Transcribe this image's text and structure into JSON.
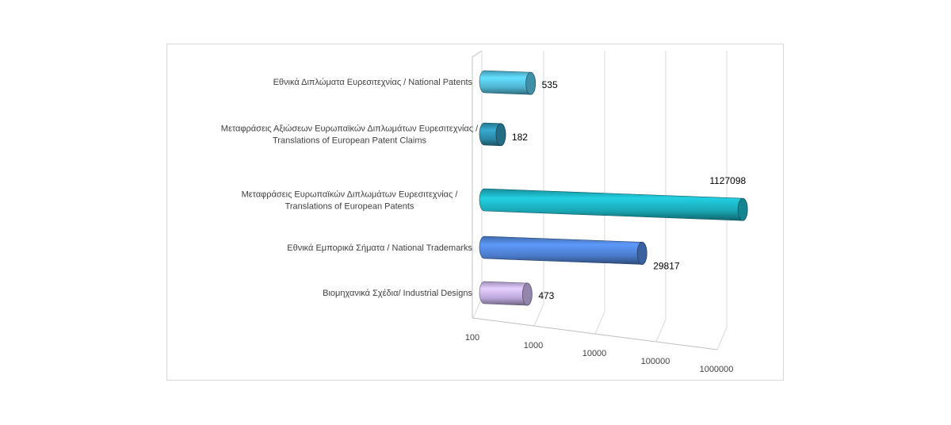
{
  "chart_data": {
    "type": "bar",
    "orientation": "horizontal",
    "style": "3d-cylinder",
    "x_scale": "log",
    "xlim": [
      100,
      1000000
    ],
    "x_ticks": [
      "100",
      "1000",
      "10000",
      "100000",
      "1000000"
    ],
    "gridlines": true,
    "legend": "none",
    "categories": [
      [
        "Εθνικά Διπλώματα Ευρεσιτεχνίας / National Patents"
      ],
      [
        "Μεταφράσεις Αξιώσεων Ευρωπαϊκών Διπλωμάτων Ευρεσιτεχνίας /",
        "Translations of European Patent Claims"
      ],
      [
        "Μεταφράσεις Ευρωπαϊκών Διπλωμάτων Ευρεσιτεχνίας /",
        "Translations of European Patents"
      ],
      [
        "Εθνικά Εμπορικά Σήματα / National Trademarks"
      ],
      [
        "Βιομηχανικά Σχέδια/ Industrial Designs"
      ]
    ],
    "values": [
      535,
      182,
      1127098,
      29817,
      473
    ],
    "data_labels": [
      "535",
      "182",
      "1127098",
      "29817",
      "473"
    ],
    "colors": [
      "#4fb3d0",
      "#2b88a5",
      "#1aa6b4",
      "#4a7ac8",
      "#b9a6d8"
    ]
  }
}
